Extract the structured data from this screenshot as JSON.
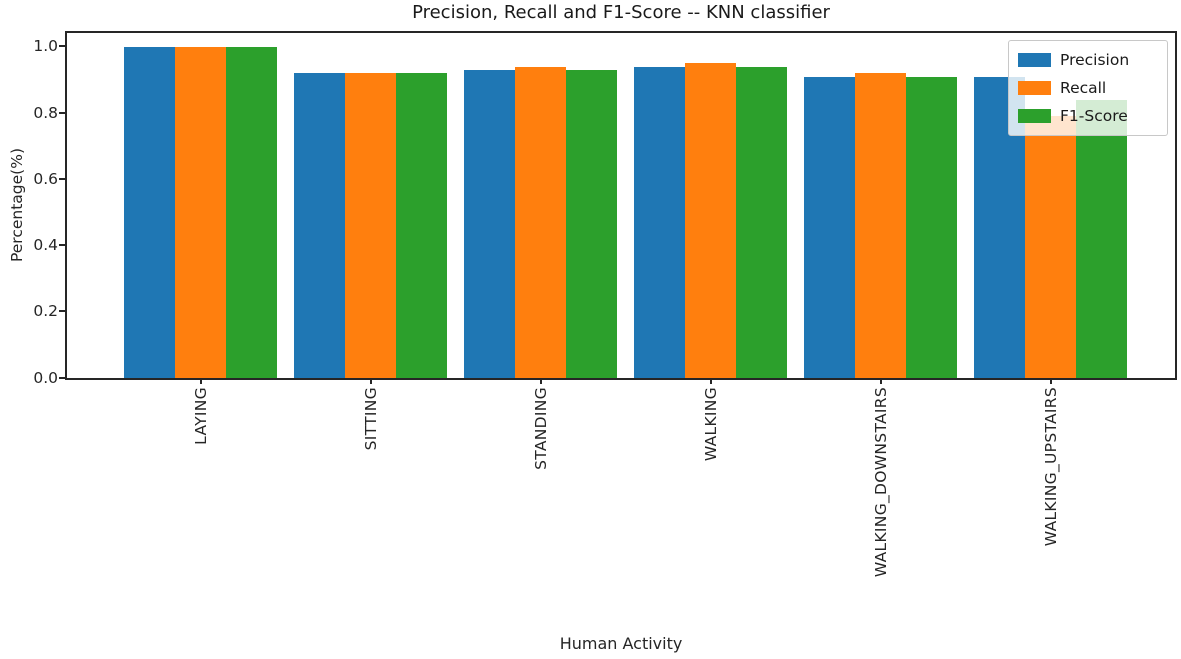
{
  "figure": {
    "title": "Precision, Recall and F1-Score -- KNN classifier",
    "xlabel": "Human Activity",
    "ylabel": "Percentage(%)"
  },
  "chart_data": {
    "type": "bar",
    "title": "Precision, Recall and F1-Score -- KNN classifier",
    "xlabel": "Human Activity",
    "ylabel": "Percentage(%)",
    "categories": [
      "LAYING",
      "SITTING",
      "STANDING",
      "WALKING",
      "WALKING_DOWNSTAIRS",
      "WALKING_UPSTAIRS"
    ],
    "series": [
      {
        "name": "Precision",
        "color": "#1f77b4",
        "values": [
          1.0,
          0.92,
          0.93,
          0.94,
          0.91,
          0.91
        ]
      },
      {
        "name": "Recall",
        "color": "#ff7f0e",
        "values": [
          1.0,
          0.92,
          0.94,
          0.95,
          0.92,
          0.79
        ]
      },
      {
        "name": "F1-Score",
        "color": "#2ca02c",
        "values": [
          1.0,
          0.92,
          0.93,
          0.94,
          0.91,
          0.84
        ]
      }
    ],
    "yticks": [
      "0.0",
      "0.2",
      "0.4",
      "0.6",
      "0.8",
      "1.0"
    ],
    "ytick_values": [
      0.0,
      0.2,
      0.4,
      0.6,
      0.8,
      1.0
    ],
    "ylim": [
      0,
      1.04
    ],
    "grid": false,
    "legend_position": "upper right",
    "xtick_rotation": 90
  }
}
